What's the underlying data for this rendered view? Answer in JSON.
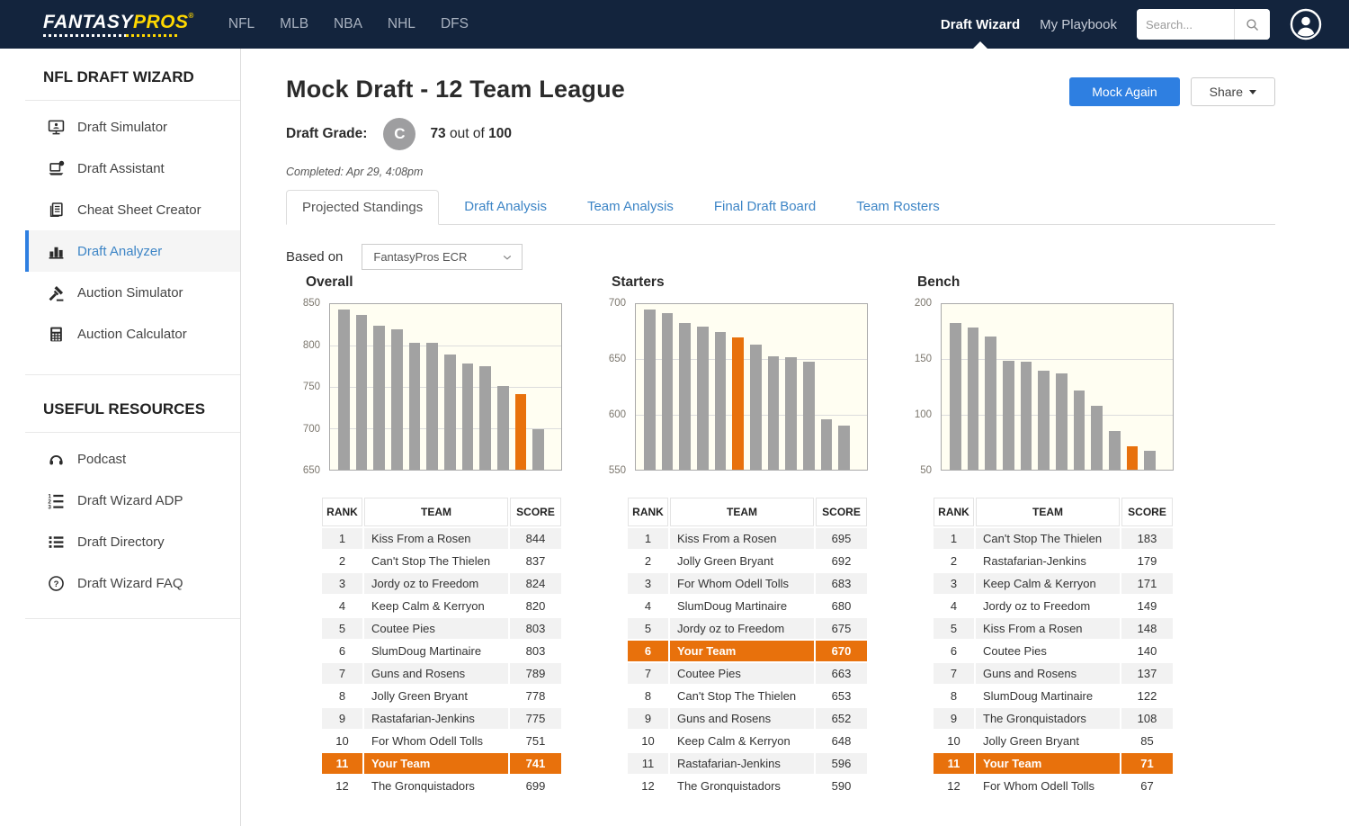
{
  "header": {
    "logo_fantasy": "FANTASY",
    "logo_pros": "PROS",
    "logo_reg": "®",
    "sports": [
      "NFL",
      "MLB",
      "NBA",
      "NHL",
      "DFS"
    ],
    "draft_wizard": "Draft Wizard",
    "my_playbook": "My Playbook",
    "search_placeholder": "Search..."
  },
  "sidebar": {
    "title": "NFL DRAFT WIZARD",
    "items": [
      {
        "label": "Draft Simulator",
        "icon": "monitor-icon"
      },
      {
        "label": "Draft Assistant",
        "icon": "laptop-icon"
      },
      {
        "label": "Cheat Sheet Creator",
        "icon": "document-icon"
      },
      {
        "label": "Draft Analyzer",
        "icon": "bar-chart-icon",
        "active": true
      },
      {
        "label": "Auction Simulator",
        "icon": "gavel-icon"
      },
      {
        "label": "Auction Calculator",
        "icon": "calculator-icon"
      }
    ],
    "resources_title": "USEFUL RESOURCES",
    "resources": [
      {
        "label": "Podcast",
        "icon": "headphones-icon"
      },
      {
        "label": "Draft Wizard ADP",
        "icon": "numbered-list-icon"
      },
      {
        "label": "Draft Directory",
        "icon": "list-icon"
      },
      {
        "label": "Draft Wizard FAQ",
        "icon": "question-circle-icon"
      }
    ]
  },
  "main": {
    "title": "Mock Draft - 12 Team League",
    "mock_again": "Mock Again",
    "share": "Share",
    "grade_label": "Draft Grade:",
    "grade_letter": "C",
    "grade_score": "73",
    "grade_out_of": " out of ",
    "grade_total": "100",
    "completed": "Completed: Apr 29, 4:08pm",
    "tabs": [
      "Projected Standings",
      "Draft Analysis",
      "Team Analysis",
      "Final Draft Board",
      "Team Rosters"
    ],
    "active_tab": "Projected Standings",
    "based_on_label": "Based on",
    "based_on_value": "FantasyPros ECR"
  },
  "colors": {
    "header_navy": "#13243D",
    "brand_yellow": "#FFD800",
    "link_blue": "#3D85C6",
    "button_blue": "#2E7FE1",
    "highlight_orange": "#E8710C",
    "bar_gray": "#A2A2A2",
    "chart_bg": "#FFFEF2"
  },
  "chart_data": [
    {
      "type": "bar",
      "title": "Overall",
      "ylabel": "",
      "xlabel": "",
      "ylim": [
        650,
        850
      ],
      "yticks": [
        850,
        800,
        750,
        700,
        650
      ],
      "values": [
        844,
        837,
        824,
        820,
        803,
        803,
        789,
        778,
        775,
        751,
        741,
        699
      ],
      "highlight_index": 10,
      "highlight_color": "#E8710C",
      "table": {
        "headers": [
          "RANK",
          "TEAM",
          "SCORE"
        ],
        "rows": [
          [
            1,
            "Kiss From a Rosen",
            844
          ],
          [
            2,
            "Can't Stop The Thielen",
            837
          ],
          [
            3,
            "Jordy oz to Freedom",
            824
          ],
          [
            4,
            "Keep Calm & Kerryon",
            820
          ],
          [
            5,
            "Coutee Pies",
            803
          ],
          [
            6,
            "SlumDoug Martinaire",
            803
          ],
          [
            7,
            "Guns and Rosens",
            789
          ],
          [
            8,
            "Jolly Green Bryant",
            778
          ],
          [
            9,
            "Rastafarian-Jenkins",
            775
          ],
          [
            10,
            "For Whom Odell Tolls",
            751
          ],
          [
            11,
            "Your Team",
            741
          ],
          [
            12,
            "The Gronquistadors",
            699
          ]
        ],
        "highlight_row": 10
      }
    },
    {
      "type": "bar",
      "title": "Starters",
      "ylabel": "",
      "xlabel": "",
      "ylim": [
        550,
        700
      ],
      "yticks": [
        700,
        650,
        600,
        550
      ],
      "values": [
        695,
        692,
        683,
        680,
        675,
        670,
        663,
        653,
        652,
        648,
        596,
        590
      ],
      "highlight_index": 5,
      "highlight_color": "#E8710C",
      "table": {
        "headers": [
          "RANK",
          "TEAM",
          "SCORE"
        ],
        "rows": [
          [
            1,
            "Kiss From a Rosen",
            695
          ],
          [
            2,
            "Jolly Green Bryant",
            692
          ],
          [
            3,
            "For Whom Odell Tolls",
            683
          ],
          [
            4,
            "SlumDoug Martinaire",
            680
          ],
          [
            5,
            "Jordy oz to Freedom",
            675
          ],
          [
            6,
            "Your Team",
            670
          ],
          [
            7,
            "Coutee Pies",
            663
          ],
          [
            8,
            "Can't Stop The Thielen",
            653
          ],
          [
            9,
            "Guns and Rosens",
            652
          ],
          [
            10,
            "Keep Calm & Kerryon",
            648
          ],
          [
            11,
            "Rastafarian-Jenkins",
            596
          ],
          [
            12,
            "The Gronquistadors",
            590
          ]
        ],
        "highlight_row": 5
      }
    },
    {
      "type": "bar",
      "title": "Bench",
      "ylabel": "",
      "xlabel": "",
      "ylim": [
        50,
        200
      ],
      "yticks": [
        200,
        150,
        100,
        50
      ],
      "values": [
        183,
        179,
        171,
        149,
        148,
        140,
        137,
        122,
        108,
        85,
        71,
        67
      ],
      "highlight_index": 10,
      "highlight_color": "#E8710C",
      "table": {
        "headers": [
          "RANK",
          "TEAM",
          "SCORE"
        ],
        "rows": [
          [
            1,
            "Can't Stop The Thielen",
            183
          ],
          [
            2,
            "Rastafarian-Jenkins",
            179
          ],
          [
            3,
            "Keep Calm & Kerryon",
            171
          ],
          [
            4,
            "Jordy oz to Freedom",
            149
          ],
          [
            5,
            "Kiss From a Rosen",
            148
          ],
          [
            6,
            "Coutee Pies",
            140
          ],
          [
            7,
            "Guns and Rosens",
            137
          ],
          [
            8,
            "SlumDoug Martinaire",
            122
          ],
          [
            9,
            "The Gronquistadors",
            108
          ],
          [
            10,
            "Jolly Green Bryant",
            85
          ],
          [
            11,
            "Your Team",
            71
          ],
          [
            12,
            "For Whom Odell Tolls",
            67
          ]
        ],
        "highlight_row": 10
      }
    }
  ]
}
